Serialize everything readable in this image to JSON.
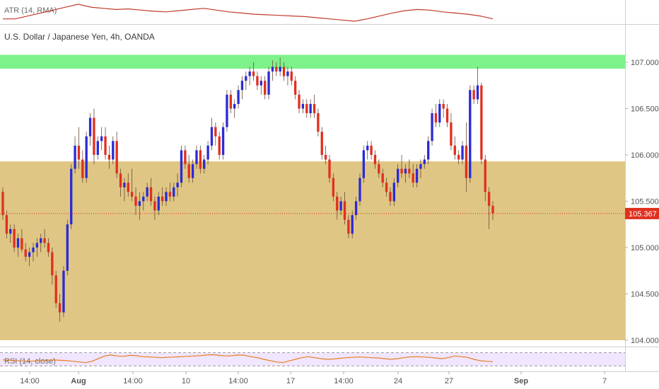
{
  "header": {
    "symbol_title": "U.S. Dollar / Japanese Yen, 4h, OANDA",
    "atr_label": "ATR (14, RMA)",
    "rsi_label": "RSI (14, close)"
  },
  "colors": {
    "up": "#2b2bd6",
    "down": "#e0301e",
    "doji_up": "#7a3fb0",
    "resistance_zone": "#7ef28a",
    "support_zone": "#dfc684",
    "atr_line": "#c0392b",
    "rsi_line": "#e67e22",
    "rsi_band": "#f1e6ff",
    "price_tag": "#e0301e"
  },
  "chart_data": {
    "type": "candlestick",
    "title": "U.S. Dollar / Japanese Yen, 4h, OANDA",
    "y_axis": {
      "range": [
        103.95,
        107.1
      ],
      "ticks": [
        "107.000",
        "106.500",
        "106.000",
        "105.500",
        "105.000",
        "104.500",
        "104.000"
      ]
    },
    "x_axis": {
      "ticks": [
        "14:00",
        "Aug",
        "14:00",
        "10",
        "14:00",
        "17",
        "14:00",
        "24",
        "27",
        "Sep",
        "7"
      ]
    },
    "last_price": "105.367",
    "zones": [
      {
        "name": "resistance",
        "from": 106.93,
        "to": 107.08
      },
      {
        "name": "support",
        "from": 104.0,
        "to": 105.93
      }
    ],
    "series": [
      {
        "name": "USDJPY 4h",
        "ohlc": [
          [
            105.6,
            105.65,
            105.3,
            105.35
          ],
          [
            105.35,
            105.4,
            105.1,
            105.15
          ],
          [
            105.15,
            105.25,
            105.05,
            105.2
          ],
          [
            105.2,
            105.25,
            104.95,
            105.0
          ],
          [
            105.0,
            105.15,
            104.9,
            105.1
          ],
          [
            105.1,
            105.2,
            104.95,
            104.98
          ],
          [
            104.98,
            105.05,
            104.85,
            104.9
          ],
          [
            104.9,
            105.0,
            104.8,
            104.95
          ],
          [
            104.95,
            105.05,
            104.85,
            105.0
          ],
          [
            105.0,
            105.1,
            104.9,
            105.05
          ],
          [
            105.05,
            105.15,
            104.95,
            105.1
          ],
          [
            105.1,
            105.2,
            105.0,
            105.05
          ],
          [
            105.05,
            105.1,
            104.9,
            104.95
          ],
          [
            104.95,
            105.0,
            104.6,
            104.7
          ],
          [
            104.7,
            104.75,
            104.35,
            104.4
          ],
          [
            104.4,
            104.5,
            104.2,
            104.3
          ],
          [
            104.3,
            104.8,
            104.25,
            104.75
          ],
          [
            104.75,
            105.3,
            104.7,
            105.25
          ],
          [
            105.25,
            105.9,
            105.2,
            105.85
          ],
          [
            105.85,
            106.2,
            105.8,
            106.1
          ],
          [
            106.1,
            106.3,
            105.85,
            105.95
          ],
          [
            105.95,
            106.05,
            105.7,
            105.75
          ],
          [
            105.75,
            106.25,
            105.7,
            106.2
          ],
          [
            106.2,
            106.45,
            106.1,
            106.4
          ],
          [
            106.4,
            106.5,
            105.9,
            106.0
          ],
          [
            106.0,
            106.2,
            105.95,
            106.15
          ],
          [
            106.15,
            106.3,
            106.05,
            106.2
          ],
          [
            106.2,
            106.3,
            105.95,
            106.0
          ],
          [
            106.0,
            106.1,
            105.85,
            105.95
          ],
          [
            105.95,
            106.2,
            105.9,
            106.15
          ],
          [
            106.15,
            106.25,
            105.75,
            105.8
          ],
          [
            105.8,
            105.85,
            105.55,
            105.65
          ],
          [
            105.65,
            105.75,
            105.5,
            105.7
          ],
          [
            105.7,
            105.8,
            105.55,
            105.6
          ],
          [
            105.6,
            105.85,
            105.5,
            105.55
          ],
          [
            105.55,
            105.65,
            105.35,
            105.45
          ],
          [
            105.45,
            105.6,
            105.3,
            105.5
          ],
          [
            105.5,
            105.6,
            105.4,
            105.55
          ],
          [
            105.55,
            105.7,
            105.5,
            105.65
          ],
          [
            105.65,
            105.75,
            105.45,
            105.5
          ],
          [
            105.5,
            105.55,
            105.3,
            105.4
          ],
          [
            105.4,
            105.6,
            105.35,
            105.55
          ],
          [
            105.55,
            105.65,
            105.45,
            105.5
          ],
          [
            105.5,
            105.65,
            105.45,
            105.6
          ],
          [
            105.6,
            105.7,
            105.5,
            105.55
          ],
          [
            105.55,
            105.7,
            105.5,
            105.65
          ],
          [
            105.65,
            105.8,
            105.55,
            105.7
          ],
          [
            105.7,
            106.1,
            105.65,
            106.05
          ],
          [
            106.05,
            106.1,
            105.85,
            105.9
          ],
          [
            105.9,
            106.0,
            105.7,
            105.75
          ],
          [
            105.75,
            105.95,
            105.7,
            105.9
          ],
          [
            105.9,
            106.1,
            105.85,
            106.05
          ],
          [
            106.05,
            106.1,
            105.8,
            105.85
          ],
          [
            105.85,
            106.0,
            105.8,
            105.95
          ],
          [
            105.95,
            106.15,
            105.9,
            106.1
          ],
          [
            106.1,
            106.4,
            106.05,
            106.3
          ],
          [
            106.3,
            106.35,
            106.1,
            106.2
          ],
          [
            106.2,
            106.25,
            105.95,
            106.0
          ],
          [
            106.0,
            106.35,
            105.95,
            106.3
          ],
          [
            106.3,
            106.7,
            106.25,
            106.65
          ],
          [
            106.65,
            106.7,
            106.45,
            106.5
          ],
          [
            106.5,
            106.6,
            106.4,
            106.55
          ],
          [
            106.55,
            106.75,
            106.5,
            106.7
          ],
          [
            106.7,
            106.85,
            106.6,
            106.8
          ],
          [
            106.8,
            106.9,
            106.7,
            106.85
          ],
          [
            106.85,
            106.95,
            106.75,
            106.9
          ],
          [
            106.9,
            107.0,
            106.8,
            106.85
          ],
          [
            106.85,
            106.9,
            106.7,
            106.75
          ],
          [
            106.75,
            106.85,
            106.65,
            106.8
          ],
          [
            106.8,
            106.85,
            106.6,
            106.65
          ],
          [
            106.65,
            106.95,
            106.6,
            106.9
          ],
          [
            106.9,
            107.02,
            106.8,
            106.95
          ],
          [
            106.95,
            107.0,
            106.85,
            106.9
          ],
          [
            106.9,
            107.05,
            106.85,
            106.95
          ],
          [
            106.95,
            107.0,
            106.8,
            106.85
          ],
          [
            106.85,
            106.95,
            106.75,
            106.9
          ],
          [
            106.9,
            106.95,
            106.75,
            106.8
          ],
          [
            106.8,
            106.85,
            106.6,
            106.65
          ],
          [
            106.65,
            106.7,
            106.45,
            106.5
          ],
          [
            106.5,
            106.6,
            106.45,
            106.55
          ],
          [
            106.55,
            106.6,
            106.4,
            106.45
          ],
          [
            106.45,
            106.6,
            106.4,
            106.55
          ],
          [
            106.55,
            106.65,
            106.4,
            106.45
          ],
          [
            106.45,
            106.5,
            106.2,
            106.25
          ],
          [
            106.25,
            106.3,
            105.95,
            106.0
          ],
          [
            106.0,
            106.1,
            105.9,
            105.95
          ],
          [
            105.95,
            106.0,
            105.7,
            105.75
          ],
          [
            105.75,
            105.8,
            105.5,
            105.55
          ],
          [
            105.55,
            105.6,
            105.3,
            105.4
          ],
          [
            105.4,
            105.55,
            105.35,
            105.5
          ],
          [
            105.5,
            105.6,
            105.25,
            105.3
          ],
          [
            105.3,
            105.35,
            105.1,
            105.15
          ],
          [
            105.15,
            105.4,
            105.1,
            105.35
          ],
          [
            105.35,
            105.55,
            105.3,
            105.5
          ],
          [
            105.5,
            105.8,
            105.45,
            105.75
          ],
          [
            105.75,
            106.1,
            105.7,
            106.05
          ],
          [
            106.05,
            106.15,
            105.95,
            106.1
          ],
          [
            106.1,
            106.15,
            105.95,
            106.0
          ],
          [
            106.0,
            106.05,
            105.85,
            105.9
          ],
          [
            105.9,
            105.95,
            105.75,
            105.8
          ],
          [
            105.8,
            105.85,
            105.65,
            105.7
          ],
          [
            105.7,
            105.75,
            105.55,
            105.6
          ],
          [
            105.6,
            105.65,
            105.45,
            105.5
          ],
          [
            105.5,
            105.75,
            105.45,
            105.7
          ],
          [
            105.7,
            105.9,
            105.65,
            105.85
          ],
          [
            105.85,
            106.0,
            105.75,
            105.8
          ],
          [
            105.8,
            105.9,
            105.7,
            105.85
          ],
          [
            105.85,
            105.95,
            105.75,
            105.8
          ],
          [
            105.8,
            105.9,
            105.65,
            105.7
          ],
          [
            105.7,
            105.9,
            105.65,
            105.85
          ],
          [
            105.85,
            105.95,
            105.75,
            105.9
          ],
          [
            105.9,
            106.0,
            105.85,
            105.95
          ],
          [
            105.95,
            106.2,
            105.9,
            106.15
          ],
          [
            106.15,
            106.5,
            106.1,
            106.45
          ],
          [
            106.45,
            106.55,
            106.3,
            106.35
          ],
          [
            106.35,
            106.6,
            106.3,
            106.55
          ],
          [
            106.55,
            106.6,
            106.4,
            106.5
          ],
          [
            106.5,
            106.55,
            106.3,
            106.35
          ],
          [
            106.35,
            106.45,
            106.05,
            106.1
          ],
          [
            106.1,
            106.2,
            105.95,
            106.0
          ],
          [
            106.0,
            106.05,
            105.9,
            105.95
          ],
          [
            105.95,
            106.15,
            105.9,
            106.1
          ],
          [
            106.1,
            106.35,
            105.6,
            105.75
          ],
          [
            105.75,
            106.75,
            105.7,
            106.7
          ],
          [
            106.7,
            106.75,
            106.55,
            106.6
          ],
          [
            106.6,
            106.95,
            106.55,
            106.75
          ],
          [
            106.75,
            106.78,
            105.9,
            105.95
          ],
          [
            105.95,
            106.0,
            105.5,
            105.6
          ],
          [
            105.6,
            105.65,
            105.2,
            105.45
          ],
          [
            105.45,
            105.5,
            105.3,
            105.37
          ]
        ]
      }
    ],
    "atr": [
      0.1,
      0.1,
      0.105,
      0.11,
      0.115,
      0.12,
      0.125,
      0.12,
      0.118,
      0.116,
      0.117,
      0.115,
      0.113,
      0.112,
      0.114,
      0.116,
      0.118,
      0.115,
      0.112,
      0.11,
      0.108,
      0.107,
      0.106,
      0.105,
      0.104,
      0.102,
      0.1,
      0.098,
      0.096,
      0.1,
      0.105,
      0.11,
      0.114,
      0.116,
      0.115,
      0.112,
      0.11,
      0.108,
      0.105,
      0.1
    ],
    "rsi": [
      48,
      47,
      46,
      45,
      44,
      45,
      46,
      47,
      48,
      47,
      46,
      44,
      42,
      40,
      44,
      52,
      60,
      63,
      60,
      59,
      62,
      61,
      58,
      57,
      56,
      55,
      56,
      57,
      58,
      59,
      60,
      61,
      63,
      64,
      62,
      60,
      61,
      63,
      62,
      58,
      55,
      50,
      46,
      42,
      40,
      45,
      50,
      55,
      58,
      55,
      52,
      50,
      51,
      53,
      55,
      56,
      57,
      56,
      55,
      54,
      52,
      50,
      52,
      55,
      57,
      58,
      57,
      56,
      54,
      52,
      55,
      60,
      58,
      56,
      50,
      46,
      44,
      43
    ],
    "rsi_band": [
      30,
      70
    ]
  }
}
